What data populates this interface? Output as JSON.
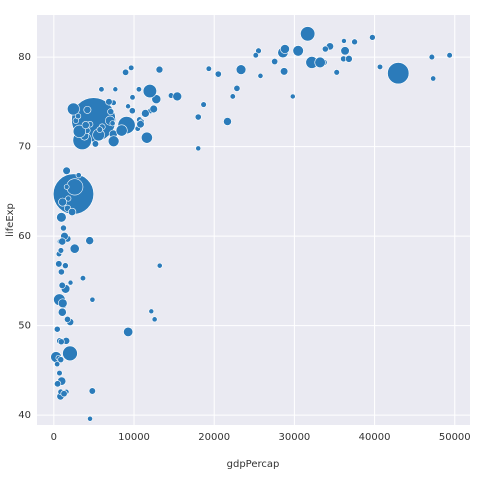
{
  "chart_data": {
    "type": "bubble",
    "x_label": "gdpPercap",
    "y_label": "lifeExp",
    "xlim": [
      -2100,
      51900
    ],
    "ylim": [
      38.9,
      84.7
    ],
    "xticks": [
      0,
      10000,
      20000,
      30000,
      40000,
      50000
    ],
    "yticks": [
      40,
      50,
      60,
      70,
      80
    ],
    "grid": true,
    "color": "#2b7bba",
    "x": [
      975,
      5937,
      6223,
      4797,
      12779,
      34435,
      36126,
      29796,
      1391,
      33693,
      1441,
      3822,
      7446,
      12570,
      9066,
      10681,
      1217,
      430,
      1714,
      2042,
      36319,
      706,
      1704,
      13172,
      4959,
      7007,
      986,
      278,
      3633,
      9645,
      1545,
      14619,
      8948,
      22833,
      35278,
      2082,
      6025,
      6873,
      5581,
      5728,
      12154,
      641,
      691,
      33207,
      30470,
      13206,
      753,
      32170,
      1328,
      27538,
      5186,
      943,
      579,
      1202,
      3548,
      39725,
      18009,
      36181,
      2452,
      3541,
      11606,
      4471,
      40676,
      25523,
      28570,
      7321,
      31656,
      4519,
      1463,
      1593,
      23348,
      47307,
      10461,
      1569,
      415,
      12057,
      1045,
      759,
      12452,
      1043,
      1803,
      10957,
      11978,
      3096,
      9254,
      3820,
      824,
      944,
      4811,
      1091,
      36798,
      25185,
      2749,
      620,
      2014,
      49357,
      22316,
      2606,
      9809,
      4173,
      7409,
      3190,
      15390,
      20510,
      19329,
      7670,
      10808,
      863,
      1598,
      21655,
      1712,
      9787,
      863,
      47143,
      18678,
      25768,
      926,
      9270,
      28821,
      3970,
      2602,
      4513,
      33860,
      37506,
      4184,
      28718,
      1107,
      7458,
      883,
      18009,
      7093,
      8458,
      1056,
      33203,
      42952,
      10611,
      11416,
      2442,
      3025,
      2281,
      1271,
      470
    ],
    "y": [
      43.8,
      76.4,
      72.3,
      42.7,
      75.3,
      81.2,
      79.8,
      75.6,
      64.1,
      79.4,
      56.7,
      65.6,
      74.9,
      50.7,
      72.4,
      73.0,
      52.3,
      49.6,
      59.7,
      50.4,
      80.7,
      44.7,
      50.7,
      78.6,
      73.0,
      72.9,
      65.2,
      46.5,
      55.3,
      78.8,
      48.3,
      75.7,
      78.3,
      76.5,
      78.3,
      54.8,
      72.2,
      75.0,
      71.3,
      71.9,
      51.6,
      58.0,
      52.9,
      79.3,
      80.7,
      56.7,
      59.4,
      79.4,
      60.0,
      79.5,
      70.3,
      56.0,
      46.4,
      60.9,
      70.2,
      82.2,
      73.3,
      81.8,
      64.7,
      70.7,
      71.0,
      59.5,
      78.9,
      80.7,
      80.5,
      72.6,
      82.6,
      72.5,
      54.1,
      67.3,
      78.6,
      77.6,
      72.0,
      42.6,
      45.7,
      74.0,
      59.4,
      48.3,
      74.2,
      54.5,
      64.2,
      72.8,
      76.2,
      66.8,
      74.5,
      71.2,
      42.1,
      62.1,
      52.9,
      63.8,
      79.8,
      80.2,
      72.9,
      56.9,
      46.9,
      80.2,
      75.6,
      65.5,
      75.5,
      71.8,
      71.4,
      71.7,
      75.6,
      78.1,
      78.7,
      76.4,
      72.5,
      46.2,
      65.5,
      72.8,
      63.1,
      74.0,
      42.6,
      80.0,
      74.7,
      77.9,
      48.2,
      49.3,
      80.9,
      72.4,
      58.6,
      39.6,
      80.9,
      81.7,
      74.1,
      78.4,
      52.5,
      70.6,
      58.4,
      69.8,
      73.9,
      71.8,
      51.5,
      79.4,
      78.2,
      76.4,
      73.7,
      74.2,
      73.4,
      62.7,
      42.4,
      43.5
    ],
    "size": [
      31.9,
      3.6,
      33.3,
      12.4,
      40.3,
      20.4,
      8.2,
      0.7,
      150.4,
      10.4,
      8.1,
      9.1,
      4.6,
      1.6,
      190,
      7.3,
      14.3,
      8.4,
      14.1,
      17.7,
      33.4,
      4.4,
      10.2,
      16.3,
      1318.7,
      44.2,
      0.7,
      64.6,
      3.8,
      4.1,
      18.0,
      4.5,
      11.4,
      10.2,
      5.5,
      0.5,
      9.3,
      13.8,
      80.3,
      6.9,
      0.55,
      4.9,
      76.5,
      5.2,
      61.1,
      1.45,
      1.7,
      82.4,
      22.9,
      10.7,
      12.6,
      9.9,
      1.5,
      8.5,
      7.5,
      6.98,
      9.96,
      0.3,
      1110,
      223.5,
      69.5,
      27.5,
      4.1,
      6.4,
      58.1,
      2.8,
      127.5,
      6.05,
      35.6,
      23.3,
      49.0,
      2.5,
      3.9,
      2.0,
      3.2,
      6.0,
      19.2,
      13.3,
      24.8,
      12.0,
      3.3,
      1.25,
      108.7,
      2.9,
      0.7,
      33.8,
      20.0,
      47.8,
      2.1,
      28.9,
      16.6,
      4.1,
      5.7,
      12.9,
      135,
      4.6,
      3.2,
      169.3,
      3.2,
      6.7,
      28.7,
      91.1,
      38.5,
      10.6,
      3.9,
      0.8,
      22.3,
      8.9,
      0.2,
      27.6,
      12.3,
      10.2,
      6.1,
      4.6,
      5.4,
      2.0,
      9.1,
      44.0,
      40.4,
      20.4,
      42.3,
      1.1,
      9.0,
      7.6,
      19.3,
      23.2,
      38.1,
      65.1,
      5.7,
      1.06,
      10.3,
      71.2,
      29.2,
      60.8,
      301.1,
      3.4,
      26.1,
      85.3,
      4.0,
      22.2,
      11.7,
      12.3
    ]
  }
}
